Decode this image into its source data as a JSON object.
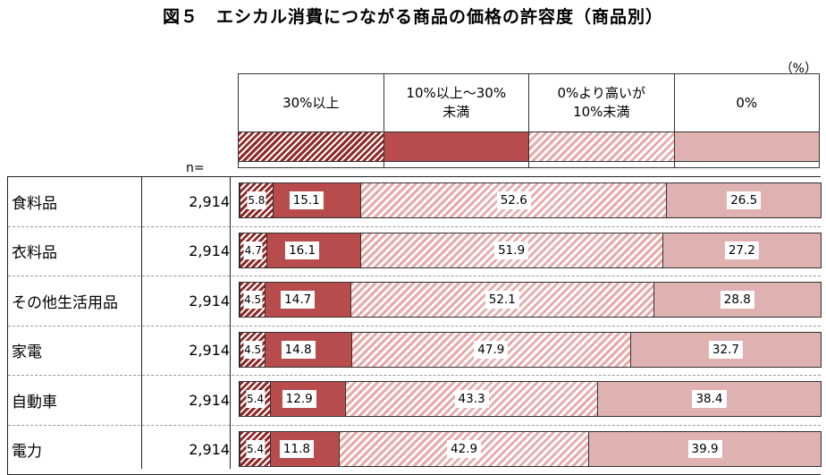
{
  "title": "図５　エシカル消費につながる商品の価格の許容度（商品別）",
  "unit": "（%）",
  "n_header": "n=",
  "colors": {
    "s1": "#8f2b2b",
    "s2": "#b84c4c",
    "s3": "#e9a9a9",
    "s4": "#dfb1b1"
  },
  "legend": [
    {
      "label": "30%以上",
      "cls": "p1"
    },
    {
      "label": "10%以上～30%\n未満",
      "cls": "p2"
    },
    {
      "label": "0%より高いが\n10%未満",
      "cls": "p3"
    },
    {
      "label": "0%",
      "cls": "p4"
    }
  ],
  "chart_data": {
    "type": "bar",
    "orientation": "horizontal",
    "stacked": true,
    "percent_stacked": true,
    "title": "図５　エシカル消費につながる商品の価格の許容度（商品別）",
    "xlabel": "",
    "ylabel": "",
    "unit": "%",
    "categories": [
      "食料品",
      "衣料品",
      "その他生活用品",
      "家電",
      "自動車",
      "電力"
    ],
    "n": [
      "2,914",
      "2,914",
      "2,914",
      "2,914",
      "2,914",
      "2,914"
    ],
    "series": [
      {
        "name": "30%以上",
        "values": [
          5.8,
          4.7,
          4.5,
          4.5,
          5.4,
          5.4
        ]
      },
      {
        "name": "10%以上～30%未満",
        "values": [
          15.1,
          16.1,
          14.7,
          14.8,
          12.9,
          11.8
        ]
      },
      {
        "name": "0%より高いが10%未満",
        "values": [
          52.6,
          51.9,
          52.1,
          47.9,
          43.3,
          42.9
        ]
      },
      {
        "name": "0%",
        "values": [
          26.5,
          27.2,
          28.8,
          32.7,
          38.4,
          39.9
        ]
      }
    ],
    "legend_position": "top"
  }
}
